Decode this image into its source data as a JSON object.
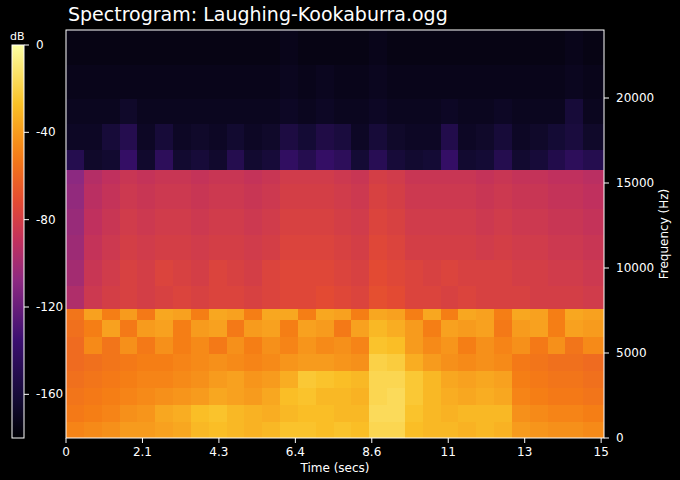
{
  "chart_data": {
    "type": "heatmap",
    "title": "Spectrogram: Laughing-Kookaburra.ogg",
    "x_label": "Time (secs)",
    "y_label": "Frequency (Hz)",
    "colorbar_label": "dB",
    "xlim": [
      0,
      15.08
    ],
    "xticks": [
      0,
      {
        "value": 2.143,
        "label": "2.1"
      },
      {
        "value": 4.286,
        "label": "4.3"
      },
      {
        "value": 6.429,
        "label": "6.4"
      },
      {
        "value": 8.571,
        "label": "8.6"
      },
      {
        "value": 10.714,
        "label": "11"
      },
      {
        "value": 12.857,
        "label": "13"
      },
      15
    ],
    "ylim": [
      0,
      24000
    ],
    "yticks": [
      0,
      5000,
      10000,
      15000,
      20000
    ],
    "x_bins": [
      0,
      0.5,
      1,
      1.5,
      2,
      2.5,
      3,
      3.5,
      4,
      4.5,
      5,
      5.5,
      6,
      6.5,
      7,
      7.5,
      8,
      8.5,
      9,
      9.5,
      10,
      10.5,
      11,
      11.5,
      12,
      12.5,
      13,
      13.5,
      14,
      14.5,
      15.08
    ],
    "y_bins": [
      0,
      1000,
      2000,
      3000,
      4000,
      5000,
      6000,
      7000,
      7600,
      9000,
      10500,
      12000,
      13500,
      15000,
      15800,
      17000,
      18500,
      20000,
      22000,
      24000
    ],
    "cells": [
      [
        -48,
        -46,
        -44,
        -40,
        -40,
        -38,
        -36,
        -30,
        -28,
        -30,
        -32,
        -30,
        -26,
        -26,
        -28,
        -26,
        -28,
        -18,
        -18,
        -28,
        -30,
        -30,
        -32,
        -30,
        -32,
        -40,
        -42,
        -44,
        -44,
        -46
      ],
      [
        -52,
        -50,
        -48,
        -44,
        -42,
        -36,
        -34,
        -28,
        -26,
        -30,
        -32,
        -34,
        -30,
        -28,
        -28,
        -30,
        -30,
        -16,
        -16,
        -26,
        -30,
        -32,
        -30,
        -30,
        -30,
        -44,
        -46,
        -48,
        -48,
        -50
      ],
      [
        -54,
        -52,
        -50,
        -48,
        -46,
        -44,
        -42,
        -40,
        -36,
        -38,
        -40,
        -36,
        -28,
        -26,
        -30,
        -30,
        -32,
        -18,
        -16,
        -24,
        -30,
        -34,
        -36,
        -34,
        -36,
        -48,
        -50,
        -52,
        -52,
        -54
      ],
      [
        -56,
        -54,
        -52,
        -50,
        -48,
        -48,
        -46,
        -44,
        -40,
        -38,
        -42,
        -40,
        -34,
        -24,
        -26,
        -28,
        -30,
        -18,
        -18,
        -24,
        -30,
        -36,
        -38,
        -36,
        -38,
        -50,
        -52,
        -54,
        -54,
        -56
      ],
      [
        -58,
        -56,
        -54,
        -52,
        -50,
        -50,
        -48,
        -46,
        -44,
        -46,
        -48,
        -46,
        -42,
        -40,
        -40,
        -42,
        -44,
        -20,
        -22,
        -34,
        -40,
        -44,
        -46,
        -44,
        -46,
        -52,
        -54,
        -56,
        -56,
        -58
      ],
      [
        -58,
        -46,
        -54,
        -44,
        -52,
        -44,
        -50,
        -46,
        -52,
        -44,
        -50,
        -44,
        -48,
        -42,
        -46,
        -44,
        -48,
        -26,
        -28,
        -40,
        -46,
        -42,
        -50,
        -44,
        -48,
        -44,
        -52,
        -44,
        -54,
        -46
      ],
      [
        -56,
        -50,
        -38,
        -52,
        -40,
        -38,
        -50,
        -40,
        -38,
        -52,
        -40,
        -38,
        -50,
        -38,
        -40,
        -52,
        -38,
        -30,
        -34,
        -40,
        -50,
        -38,
        -40,
        -38,
        -52,
        -40,
        -38,
        -50,
        -38,
        -40
      ],
      [
        -54,
        -38,
        -50,
        -40,
        -52,
        -36,
        -38,
        -50,
        -36,
        -38,
        -50,
        -36,
        -36,
        -50,
        -36,
        -38,
        -50,
        -36,
        -38,
        -50,
        -36,
        -50,
        -36,
        -38,
        -50,
        -36,
        -38,
        -50,
        -36,
        -38
      ],
      [
        -96,
        -84,
        -80,
        -78,
        -80,
        -78,
        -76,
        -78,
        -76,
        -76,
        -78,
        -76,
        -74,
        -74,
        -72,
        -74,
        -76,
        -70,
        -72,
        -76,
        -76,
        -78,
        -76,
        -78,
        -78,
        -78,
        -80,
        -80,
        -80,
        -82
      ],
      [
        -100,
        -86,
        -82,
        -78,
        -80,
        -76,
        -78,
        -80,
        -76,
        -78,
        -80,
        -76,
        -74,
        -74,
        -74,
        -76,
        -78,
        -72,
        -74,
        -76,
        -78,
        -76,
        -78,
        -78,
        -78,
        -80,
        -80,
        -82,
        -82,
        -84
      ],
      [
        -102,
        -88,
        -84,
        -80,
        -82,
        -80,
        -80,
        -82,
        -80,
        -80,
        -82,
        -80,
        -76,
        -76,
        -76,
        -78,
        -80,
        -74,
        -76,
        -80,
        -80,
        -80,
        -80,
        -82,
        -80,
        -82,
        -82,
        -84,
        -84,
        -86
      ],
      [
        -104,
        -90,
        -86,
        -82,
        -84,
        -82,
        -82,
        -84,
        -82,
        -82,
        -84,
        -82,
        -78,
        -78,
        -78,
        -80,
        -82,
        -76,
        -78,
        -82,
        -82,
        -82,
        -82,
        -84,
        -82,
        -84,
        -84,
        -86,
        -86,
        -88
      ],
      [
        -106,
        -92,
        -88,
        -84,
        -86,
        -84,
        -84,
        -86,
        -84,
        -84,
        -86,
        -84,
        -80,
        -80,
        -80,
        -82,
        -84,
        -78,
        -80,
        -84,
        -84,
        -84,
        -84,
        -86,
        -84,
        -86,
        -86,
        -88,
        -88,
        -90
      ],
      [
        -108,
        -94,
        -90,
        -86,
        -88,
        -86,
        -86,
        -88,
        -86,
        -86,
        -88,
        -86,
        -82,
        -82,
        -82,
        -84,
        -86,
        -80,
        -82,
        -86,
        -86,
        -86,
        -86,
        -88,
        -86,
        -88,
        -88,
        -90,
        -90,
        -92
      ],
      [
        -150,
        -166,
        -164,
        -140,
        -165,
        -145,
        -164,
        -160,
        -165,
        -150,
        -164,
        -160,
        -142,
        -150,
        -140,
        -145,
        -162,
        -148,
        -160,
        -164,
        -162,
        -140,
        -164,
        -162,
        -150,
        -164,
        -160,
        -152,
        -145,
        -150
      ],
      [
        -168,
        -168,
        -160,
        -150,
        -168,
        -160,
        -168,
        -166,
        -168,
        -164,
        -168,
        -166,
        -156,
        -162,
        -154,
        -158,
        -168,
        -160,
        -166,
        -168,
        -168,
        -152,
        -168,
        -166,
        -160,
        -168,
        -166,
        -162,
        -158,
        -166
      ],
      [
        -170,
        -170,
        -170,
        -166,
        -170,
        -170,
        -170,
        -170,
        -170,
        -170,
        -170,
        -170,
        -168,
        -170,
        -168,
        -170,
        -170,
        -168,
        -170,
        -170,
        -170,
        -168,
        -170,
        -170,
        -168,
        -170,
        -170,
        -170,
        -160,
        -170
      ],
      [
        -172,
        -172,
        -172,
        -172,
        -172,
        -172,
        -172,
        -172,
        -172,
        -172,
        -172,
        -172,
        -170,
        -172,
        -170,
        -172,
        -172,
        -170,
        -172,
        -172,
        -172,
        -172,
        -172,
        -172,
        -172,
        -172,
        -172,
        -172,
        -170,
        -172
      ],
      [
        -174,
        -174,
        -174,
        -174,
        -174,
        -174,
        -174,
        -174,
        -174,
        -174,
        -174,
        -174,
        -172,
        -174,
        -174,
        -174,
        -174,
        -172,
        -174,
        -174,
        -174,
        -174,
        -174,
        -174,
        -174,
        -174,
        -174,
        -174,
        -172,
        -174
      ]
    ],
    "colorbar_range": [
      -180,
      0
    ],
    "colorbar_ticks": [
      0,
      -40,
      -80,
      -120,
      -160
    ]
  }
}
